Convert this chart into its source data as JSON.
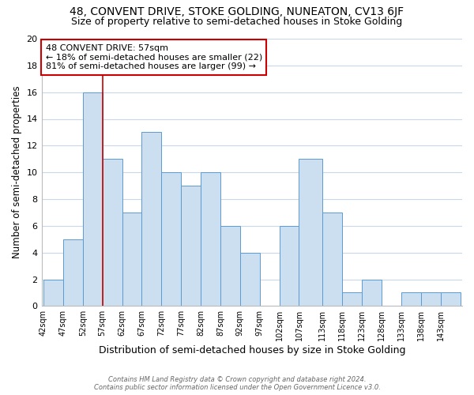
{
  "title": "48, CONVENT DRIVE, STOKE GOLDING, NUNEATON, CV13 6JF",
  "subtitle": "Size of property relative to semi-detached houses in Stoke Golding",
  "xlabel": "Distribution of semi-detached houses by size in Stoke Golding",
  "ylabel": "Number of semi-detached properties",
  "bar_labels": [
    "42sqm",
    "47sqm",
    "52sqm",
    "57sqm",
    "62sqm",
    "67sqm",
    "72sqm",
    "77sqm",
    "82sqm",
    "87sqm",
    "92sqm",
    "97sqm",
    "102sqm",
    "107sqm",
    "113sqm",
    "118sqm",
    "123sqm",
    "128sqm",
    "133sqm",
    "138sqm",
    "143sqm"
  ],
  "bin_edges": [
    42,
    47,
    52,
    57,
    62,
    67,
    72,
    77,
    82,
    87,
    92,
    97,
    102,
    107,
    113,
    118,
    123,
    128,
    133,
    138,
    143,
    148
  ],
  "bar_values": [
    2,
    5,
    16,
    11,
    7,
    13,
    10,
    9,
    10,
    6,
    4,
    0,
    6,
    11,
    7,
    1,
    2,
    0,
    1,
    1,
    1
  ],
  "bar_color": "#ccdff0",
  "bar_edge_color": "#5b9bd5",
  "ylim": [
    0,
    20
  ],
  "yticks": [
    0,
    2,
    4,
    6,
    8,
    10,
    12,
    14,
    16,
    18,
    20
  ],
  "property_line_x": 57,
  "property_line_color": "#cc0000",
  "annotation_title": "48 CONVENT DRIVE: 57sqm",
  "annotation_line1": "← 18% of semi-detached houses are smaller (22)",
  "annotation_line2": "81% of semi-detached houses are larger (99) →",
  "annotation_box_color": "#ffffff",
  "annotation_box_edge_color": "#cc0000",
  "footer_line1": "Contains HM Land Registry data © Crown copyright and database right 2024.",
  "footer_line2": "Contains public sector information licensed under the Open Government Licence v3.0.",
  "background_color": "#ffffff",
  "grid_color": "#c8d8e8",
  "title_fontsize": 10,
  "subtitle_fontsize": 9,
  "xlabel_fontsize": 9,
  "ylabel_fontsize": 8.5
}
